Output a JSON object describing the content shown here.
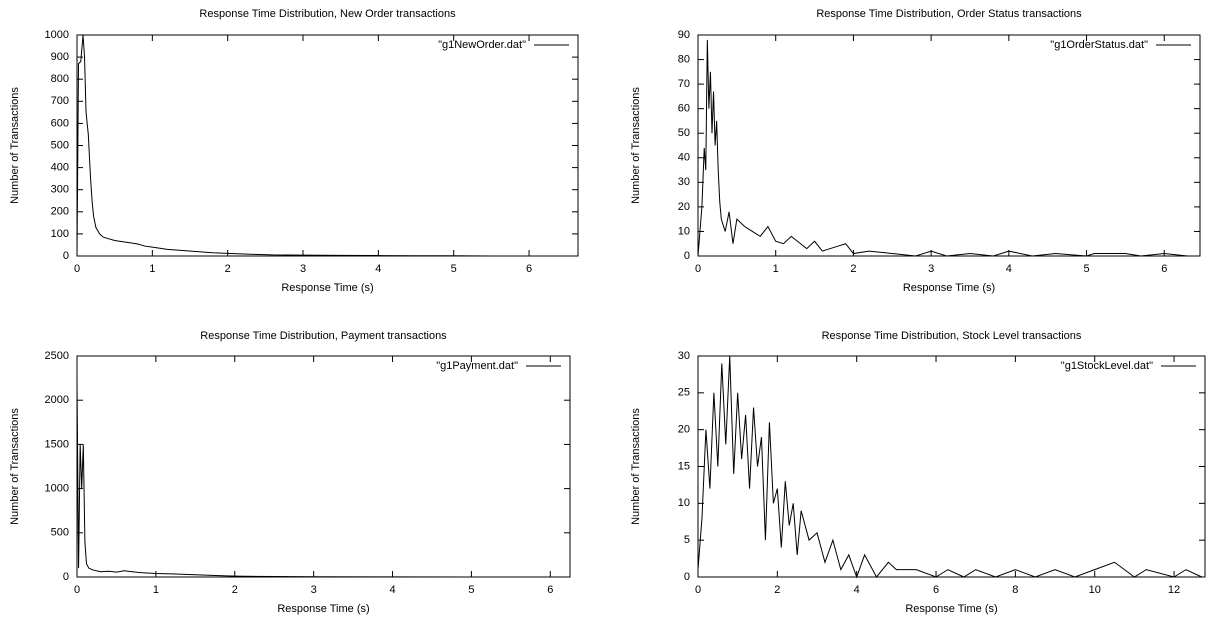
{
  "chart_data": [
    {
      "type": "line",
      "title": "Response Time Distribution, New Order transactions",
      "x_label": "Response Time (s)",
      "y_label": "Number of Transactions",
      "x": [
        0,
        0.02,
        0.05,
        0.08,
        0.1,
        0.12,
        0.15,
        0.18,
        0.2,
        0.22,
        0.25,
        0.3,
        0.35,
        0.4,
        0.5,
        0.6,
        0.7,
        0.8,
        0.9,
        1.0,
        1.2,
        1.4,
        1.6,
        1.8,
        2.0,
        2.3,
        2.6,
        3.0,
        3.5,
        4.0,
        4.5,
        5.0,
        5.5,
        6.0,
        6.6
      ],
      "series": [
        {
          "name": "\"g1NewOrder.dat\"",
          "color": "#000000",
          "values": [
            0,
            870,
            880,
            1000,
            900,
            650,
            550,
            350,
            250,
            180,
            130,
            100,
            85,
            80,
            70,
            65,
            60,
            55,
            45,
            40,
            30,
            25,
            20,
            15,
            12,
            8,
            5,
            4,
            3,
            2,
            1,
            1,
            0,
            0,
            0
          ]
        }
      ],
      "xlim": [
        0,
        6.65
      ],
      "xticks": [
        0,
        1,
        2,
        3,
        4,
        5,
        6
      ],
      "ylim": [
        0,
        1000
      ],
      "yticks": [
        0,
        100,
        200,
        300,
        400,
        500,
        600,
        700,
        800,
        900,
        1000
      ],
      "legend": "top-right"
    },
    {
      "type": "line",
      "title": "Response Time Distribution, Order Status transactions",
      "x_label": "Response Time (s)",
      "y_label": "Number of Transactions",
      "x": [
        0,
        0.05,
        0.08,
        0.1,
        0.12,
        0.14,
        0.16,
        0.18,
        0.2,
        0.22,
        0.24,
        0.26,
        0.28,
        0.3,
        0.35,
        0.4,
        0.45,
        0.5,
        0.6,
        0.7,
        0.8,
        0.9,
        1.0,
        1.1,
        1.2,
        1.4,
        1.5,
        1.6,
        1.8,
        1.9,
        2.0,
        2.2,
        2.5,
        2.8,
        3.0,
        3.2,
        3.5,
        3.8,
        4.0,
        4.3,
        4.6,
        5.0,
        5.1,
        5.5,
        5.7,
        6.0,
        6.3
      ],
      "series": [
        {
          "name": "\"g1OrderStatus.dat\"",
          "color": "#000000",
          "values": [
            0,
            20,
            44,
            35,
            88,
            60,
            75,
            50,
            67,
            45,
            55,
            35,
            22,
            15,
            10,
            18,
            5,
            15,
            12,
            10,
            8,
            12,
            6,
            5,
            8,
            3,
            6,
            2,
            4,
            5,
            1,
            2,
            1,
            0,
            2,
            0,
            1,
            0,
            2,
            0,
            1,
            0,
            1,
            1,
            0,
            1,
            0
          ]
        }
      ],
      "xlim": [
        0,
        6.46
      ],
      "xticks": [
        0,
        1,
        2,
        3,
        4,
        5,
        6
      ],
      "ylim": [
        0,
        90
      ],
      "yticks": [
        0,
        10,
        20,
        30,
        40,
        50,
        60,
        70,
        80,
        90
      ],
      "legend": "top-right"
    },
    {
      "type": "line",
      "title": "Response Time Distribution, Payment transactions",
      "x_label": "Response Time (s)",
      "y_label": "Number of Transactions",
      "x": [
        0,
        0.02,
        0.04,
        0.06,
        0.08,
        0.1,
        0.12,
        0.15,
        0.2,
        0.3,
        0.4,
        0.5,
        0.6,
        0.8,
        1.0,
        1.2,
        1.5,
        1.8,
        2.0,
        2.5,
        3.0,
        4.0,
        5.0,
        6.2
      ],
      "series": [
        {
          "name": "\"g1Payment.dat\"",
          "color": "#000000",
          "values": [
            2200,
            100,
            1500,
            1000,
            1500,
            400,
            150,
            100,
            80,
            60,
            65,
            55,
            70,
            50,
            40,
            35,
            25,
            15,
            10,
            5,
            3,
            1,
            0,
            0
          ]
        }
      ],
      "xlim": [
        0,
        6.25
      ],
      "xticks": [
        0,
        1,
        2,
        3,
        4,
        5,
        6
      ],
      "ylim": [
        0,
        2500
      ],
      "yticks": [
        0,
        500,
        1000,
        1500,
        2000,
        2500
      ],
      "legend": "top-right"
    },
    {
      "type": "line",
      "title": "Response Time Distribution, Stock Level transactions",
      "x_label": "Response Time (s)",
      "y_label": "Number of Transactions",
      "x": [
        0,
        0.1,
        0.2,
        0.3,
        0.4,
        0.5,
        0.6,
        0.7,
        0.8,
        0.9,
        1.0,
        1.1,
        1.2,
        1.3,
        1.4,
        1.5,
        1.6,
        1.7,
        1.8,
        1.9,
        2.0,
        2.1,
        2.2,
        2.3,
        2.4,
        2.5,
        2.6,
        2.8,
        3.0,
        3.2,
        3.4,
        3.6,
        3.8,
        4.0,
        4.2,
        4.5,
        4.8,
        5.0,
        5.5,
        6.0,
        6.3,
        6.7,
        7.0,
        7.5,
        8.0,
        8.5,
        9.0,
        9.5,
        10.0,
        10.5,
        11.0,
        11.3,
        12.0,
        12.3,
        12.7
      ],
      "series": [
        {
          "name": "\"g1StockLevel.dat\"",
          "color": "#000000",
          "values": [
            1,
            8,
            20,
            12,
            25,
            15,
            29,
            18,
            30,
            14,
            25,
            16,
            22,
            12,
            23,
            15,
            19,
            5,
            21,
            10,
            12,
            4,
            13,
            7,
            10,
            3,
            9,
            5,
            6,
            2,
            5,
            1,
            3,
            0,
            3,
            0,
            2,
            1,
            1,
            0,
            1,
            0,
            1,
            0,
            1,
            0,
            1,
            0,
            1,
            2,
            0,
            1,
            0,
            1,
            0
          ]
        }
      ],
      "xlim": [
        0,
        12.78
      ],
      "xticks": [
        0,
        2,
        4,
        6,
        8,
        10,
        12
      ],
      "ylim": [
        0,
        30
      ],
      "yticks": [
        0,
        5,
        10,
        15,
        20,
        25,
        30
      ],
      "legend": "top-right"
    }
  ]
}
